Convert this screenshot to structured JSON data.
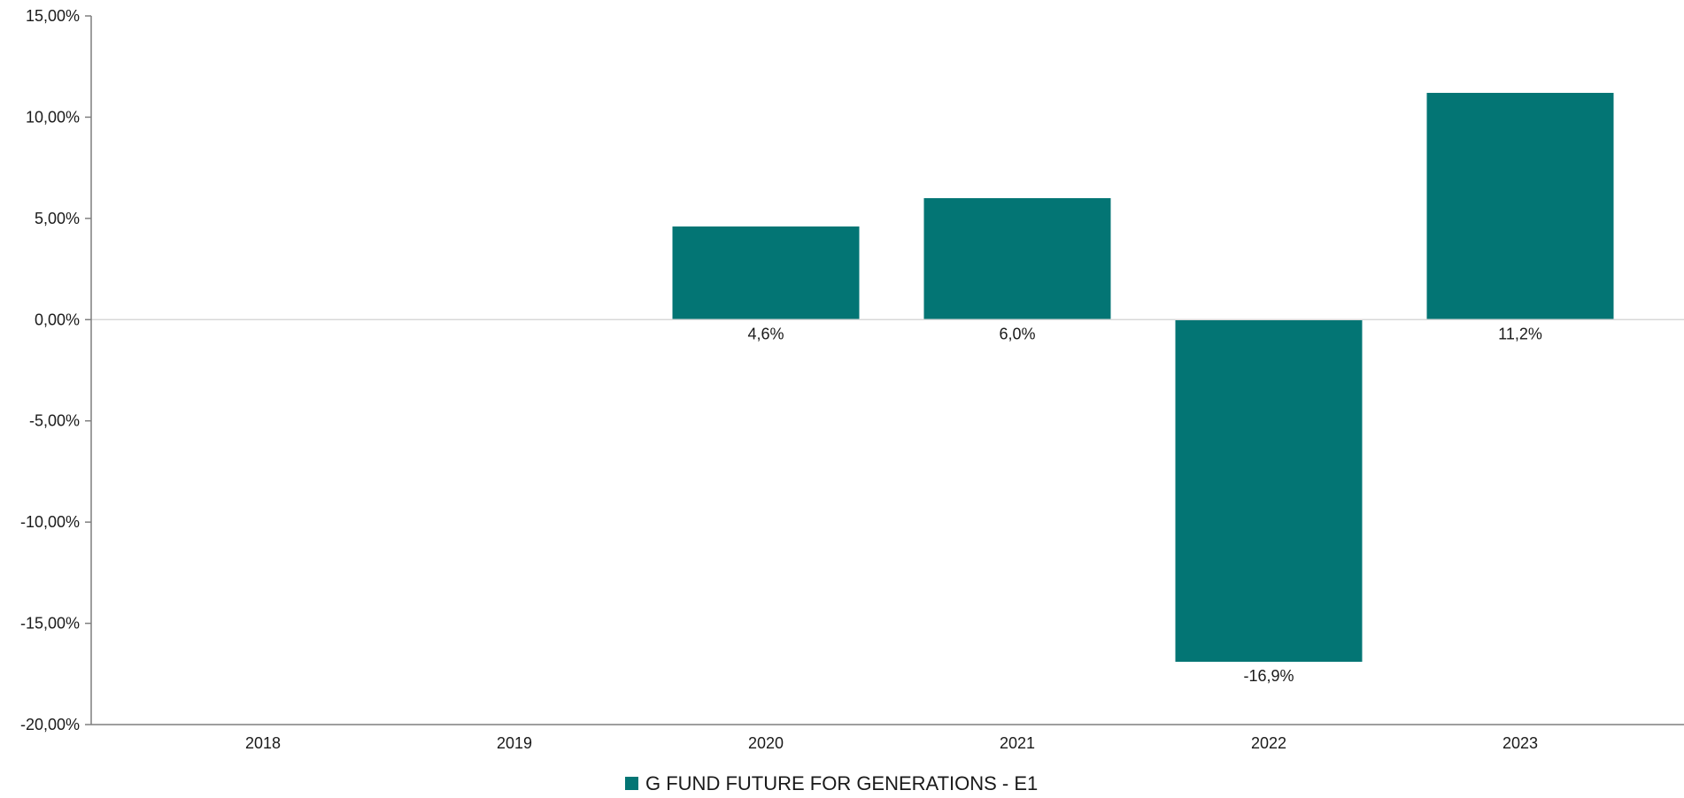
{
  "chart_data": {
    "type": "bar",
    "categories": [
      "2018",
      "2019",
      "2020",
      "2021",
      "2022",
      "2023"
    ],
    "series": [
      {
        "name": "G FUND FUTURE FOR GENERATIONS - E1",
        "values": [
          null,
          null,
          4.6,
          6.0,
          -16.9,
          11.2
        ],
        "labels": [
          "",
          "",
          "4,6%",
          "6,0%",
          "-16,9%",
          "11,2%"
        ],
        "color": "#037574"
      }
    ],
    "ylim": [
      -20,
      15
    ],
    "yticks": [
      15,
      10,
      5,
      0,
      -5,
      -10,
      -15,
      -20
    ],
    "ytick_labels": [
      "15,00%",
      "10,00%",
      "5,00%",
      "0,00%",
      "-5,00%",
      "-10,00%",
      "-15,00%",
      "-20,00%"
    ],
    "grid": false,
    "legend": "bottom-center",
    "title": "",
    "xlabel": "",
    "ylabel": ""
  }
}
